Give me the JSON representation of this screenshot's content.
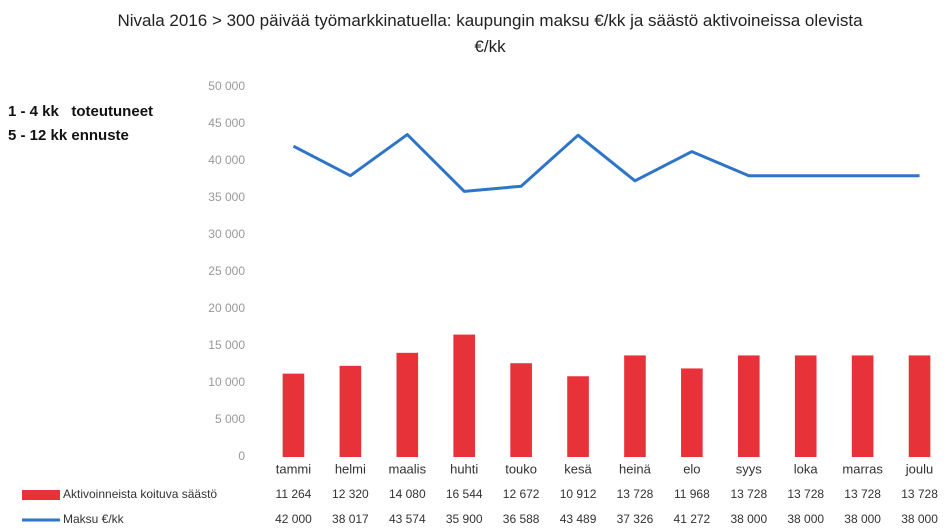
{
  "chart_data": {
    "type": "bar-line",
    "title": "Nivala 2016 > 300 päivää työmarkkinatuella:  kaupungin maksu €/kk ja  säästö aktivoineissa olevista €/kk",
    "annotations": [
      "1 - 4 kk   toteutuneet",
      "5 - 12 kk ennuste"
    ],
    "categories": [
      "tammi",
      "helmi",
      "maalis",
      "huhti",
      "touko",
      "kesä",
      "heinä",
      "elo",
      "syys",
      "loka",
      "marras",
      "joulu"
    ],
    "series": [
      {
        "name": "Aktivoinneista koituva säästö",
        "type": "bar",
        "color": "#e8323a",
        "values": [
          11264,
          12320,
          14080,
          16544,
          12672,
          10912,
          13728,
          11968,
          13728,
          13728,
          13728,
          13728
        ],
        "value_labels": [
          "11 264",
          "12 320",
          "14 080",
          "16 544",
          "12 672",
          "10 912",
          "13 728",
          "11 968",
          "13 728",
          "13 728",
          "13 728",
          "13 728"
        ]
      },
      {
        "name": "Maksu €/kk",
        "type": "line",
        "color": "#2e75c8",
        "values": [
          42000,
          38017,
          43574,
          35900,
          36588,
          43489,
          37326,
          41272,
          38000,
          38000,
          38000,
          38000
        ],
        "value_labels": [
          "42 000",
          "38 017",
          "43 574",
          "35 900",
          "36 588",
          "43 489",
          "37 326",
          "41 272",
          "38 000",
          "38 000",
          "38 000",
          "38 000"
        ]
      }
    ],
    "ylim": [
      0,
      50000
    ],
    "yticks": [
      0,
      {
        "value": 5000,
        "label": "5 000"
      },
      {
        "value": 10000,
        "label": "10 000"
      },
      {
        "value": 15000,
        "label": "15 000"
      },
      {
        "value": 20000,
        "label": "20 000"
      },
      {
        "value": 25000,
        "label": "25 000"
      },
      {
        "value": 30000,
        "label": "30 000"
      },
      {
        "value": 35000,
        "label": "35 000"
      },
      {
        "value": 40000,
        "label": "40 000"
      },
      {
        "value": 45000,
        "label": "45 000"
      },
      {
        "value": 50000,
        "label": "50 000"
      }
    ],
    "grid": false
  }
}
